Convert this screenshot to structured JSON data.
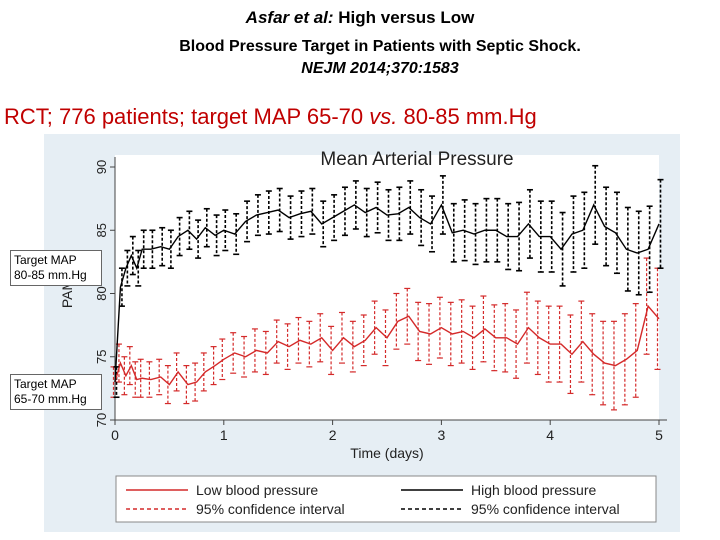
{
  "header": {
    "authors_italic": "Asfar et al:",
    "title_line1_rest": "High versus Low",
    "title_line2": "Blood Pressure Target in Patients with Septic Shock.",
    "citation": "NEJM 2014;370:1583"
  },
  "banner": {
    "prefix": "RCT; 776 patients; target MAP 65-70 ",
    "vs": "vs.",
    "suffix": " 80-85 mm.Hg"
  },
  "annotations": {
    "high_label": "Target MAP\n80-85 mm.Hg",
    "low_label": "Target MAP\n65-70 mm.Hg"
  },
  "colors": {
    "plot_background": "#e6eef4",
    "low_series": "#d42a2a",
    "high_series": "#000000",
    "banner_text": "#c00000"
  },
  "chart_data": {
    "type": "line",
    "title": "Mean Arterial Pressure",
    "xlabel": "Time (days)",
    "ylabel": "PAM",
    "xlim": [
      0,
      5
    ],
    "ylim": [
      70,
      90
    ],
    "x_ticks": [
      0,
      1,
      2,
      3,
      4,
      5
    ],
    "x_tick_labels": [
      "0",
      "1",
      "2",
      "3",
      "4",
      "5"
    ],
    "y_ticks": [
      70,
      75,
      80,
      85,
      90
    ],
    "y_tick_labels": [
      "70",
      "75",
      "80",
      "85",
      "90"
    ],
    "grid": false,
    "legend_position": "bottom",
    "x": [
      0,
      0.05,
      0.1,
      0.15,
      0.2,
      0.25,
      0.33,
      0.42,
      0.5,
      0.58,
      0.67,
      0.75,
      0.83,
      0.92,
      1.0,
      1.1,
      1.2,
      1.3,
      1.4,
      1.5,
      1.6,
      1.7,
      1.8,
      1.9,
      2.0,
      2.1,
      2.2,
      2.3,
      2.4,
      2.5,
      2.6,
      2.7,
      2.8,
      2.9,
      3.0,
      3.1,
      3.2,
      3.3,
      3.4,
      3.5,
      3.6,
      3.7,
      3.8,
      3.9,
      4.0,
      4.1,
      4.2,
      4.3,
      4.4,
      4.5,
      4.6,
      4.7,
      4.8,
      4.9,
      5.0
    ],
    "series": [
      {
        "name": "Low blood pressure",
        "style": "solid",
        "color": "#d42a2a",
        "values": [
          73.0,
          74.5,
          73.5,
          74.3,
          73.2,
          73.3,
          73.2,
          73.4,
          72.8,
          73.8,
          72.8,
          73.0,
          73.8,
          74.3,
          74.8,
          75.3,
          75.0,
          75.5,
          75.3,
          76.2,
          75.8,
          76.3,
          76.0,
          76.5,
          75.5,
          76.5,
          75.8,
          76.3,
          77.3,
          76.5,
          77.8,
          78.2,
          77.0,
          76.8,
          77.3,
          76.8,
          77.0,
          76.5,
          77.2,
          76.5,
          76.5,
          76.0,
          77.3,
          76.5,
          76.0,
          76.0,
          75.2,
          76.2,
          75.2,
          74.5,
          74.3,
          74.8,
          75.5,
          79.0,
          78.0
        ]
      },
      {
        "name": "High blood pressure",
        "style": "solid",
        "color": "#000000",
        "values": [
          73.0,
          80.5,
          82.0,
          83.0,
          82.0,
          83.5,
          83.5,
          83.7,
          83.5,
          84.5,
          85.0,
          84.3,
          85.2,
          84.6,
          85.0,
          84.7,
          85.7,
          86.2,
          86.4,
          86.6,
          86.0,
          86.3,
          86.5,
          85.5,
          86.0,
          86.5,
          87.0,
          86.4,
          86.8,
          86.2,
          86.3,
          86.8,
          86.0,
          85.5,
          87.0,
          84.8,
          85.0,
          84.7,
          85.0,
          85.0,
          84.5,
          84.5,
          85.5,
          84.5,
          84.5,
          83.5,
          84.7,
          85.0,
          87.0,
          85.3,
          84.8,
          83.5,
          83.2,
          83.5,
          85.5
        ]
      }
    ],
    "confidence_intervals": [
      {
        "name": "95% confidence interval",
        "of": "Low blood pressure",
        "style": "dashed",
        "lower": [
          71.8,
          73.0,
          72.0,
          72.8,
          71.8,
          71.8,
          71.8,
          72.0,
          71.3,
          72.3,
          71.3,
          71.5,
          72.3,
          72.8,
          73.2,
          73.7,
          73.4,
          73.8,
          73.6,
          74.5,
          74.0,
          74.5,
          74.2,
          74.6,
          73.6,
          74.5,
          73.8,
          74.3,
          75.2,
          74.3,
          75.6,
          76.0,
          74.7,
          74.4,
          74.9,
          74.3,
          74.5,
          74.0,
          74.6,
          73.9,
          73.8,
          73.3,
          74.5,
          73.6,
          73.0,
          73.0,
          72.1,
          73.0,
          72.0,
          71.2,
          70.8,
          71.2,
          71.8,
          75.2,
          74.0
        ],
        "upper": [
          74.2,
          76.0,
          75.0,
          75.8,
          74.6,
          74.8,
          74.6,
          74.8,
          74.3,
          75.3,
          74.3,
          74.5,
          75.3,
          75.8,
          76.4,
          76.9,
          76.6,
          77.2,
          77.0,
          77.9,
          77.6,
          78.1,
          77.8,
          78.4,
          77.4,
          78.5,
          77.8,
          78.3,
          79.4,
          78.7,
          80.0,
          80.4,
          79.3,
          79.2,
          79.7,
          79.3,
          79.5,
          79.0,
          79.8,
          79.1,
          79.2,
          78.7,
          80.1,
          79.4,
          79.0,
          79.0,
          78.3,
          79.4,
          78.4,
          77.8,
          77.8,
          78.4,
          79.2,
          82.8,
          82.0
        ]
      },
      {
        "name": "95% confidence interval",
        "of": "High blood pressure",
        "style": "dashed",
        "lower": [
          71.8,
          79.0,
          80.6,
          81.5,
          80.6,
          82.0,
          82.0,
          82.2,
          82.0,
          83.0,
          83.5,
          82.8,
          83.7,
          83.0,
          83.4,
          83.1,
          84.1,
          84.6,
          84.7,
          84.9,
          84.3,
          84.5,
          84.7,
          83.7,
          84.2,
          84.6,
          85.1,
          84.5,
          84.8,
          84.2,
          84.2,
          84.7,
          83.8,
          83.3,
          84.7,
          82.5,
          82.6,
          82.3,
          82.5,
          82.5,
          81.9,
          81.8,
          82.8,
          81.7,
          81.7,
          80.6,
          81.7,
          82.0,
          83.9,
          82.2,
          81.6,
          80.2,
          79.9,
          80.1,
          82.0
        ],
        "upper": [
          74.2,
          82.0,
          83.4,
          84.5,
          83.4,
          85.0,
          85.0,
          85.2,
          85.0,
          86.0,
          86.5,
          85.8,
          86.7,
          86.2,
          86.6,
          86.3,
          87.3,
          87.8,
          88.1,
          88.3,
          87.7,
          88.1,
          88.3,
          87.3,
          87.8,
          88.4,
          88.9,
          88.3,
          88.8,
          88.2,
          88.4,
          88.9,
          88.2,
          87.7,
          89.3,
          87.1,
          87.4,
          87.1,
          87.5,
          87.5,
          87.1,
          87.2,
          88.2,
          87.3,
          87.3,
          86.4,
          87.7,
          88.0,
          90.1,
          88.4,
          88.0,
          86.8,
          86.5,
          86.9,
          89.0
        ]
      }
    ],
    "legend": [
      {
        "label": "Low blood pressure",
        "style": "solid",
        "color": "#d42a2a"
      },
      {
        "label": "High blood pressure",
        "style": "solid",
        "color": "#000000"
      },
      {
        "label": "95% confidence interval",
        "style": "dashed",
        "color": "#d42a2a"
      },
      {
        "label": "95% confidence interval",
        "style": "dashed",
        "color": "#000000"
      }
    ]
  }
}
